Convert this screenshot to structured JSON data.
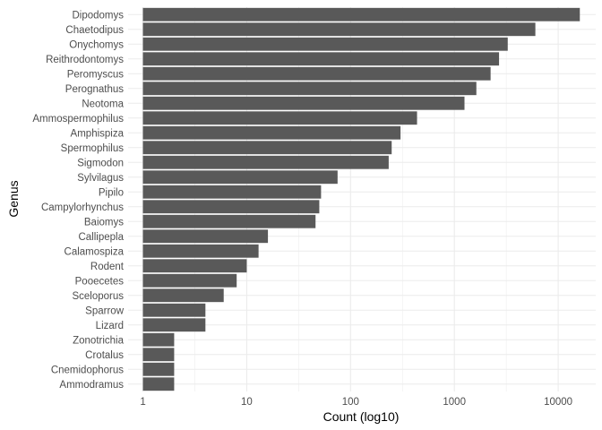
{
  "chart_data": {
    "type": "bar",
    "orientation": "horizontal",
    "xlabel": "Count (log10)",
    "ylabel": "Genus",
    "x_scale": "log10",
    "xlim": [
      0.72,
      23000
    ],
    "x_ticks": [
      1,
      10,
      100,
      1000,
      10000
    ],
    "x_tick_labels": [
      "1",
      "10",
      "100",
      "1000",
      "10000"
    ],
    "grid": true,
    "bar_color": "#595959",
    "grid_color": "#ebebeb",
    "categories": [
      "Dipodomys",
      "Chaetodipus",
      "Onychomys",
      "Reithrodontomys",
      "Peromyscus",
      "Perognathus",
      "Neotoma",
      "Ammospermophilus",
      "Amphispiza",
      "Spermophilus",
      "Sigmodon",
      "Sylvilagus",
      "Pipilo",
      "Campylorhynchus",
      "Baiomys",
      "Callipepla",
      "Calamospiza",
      "Rodent",
      "Pooecetes",
      "Sceloporus",
      "Sparrow",
      "Lizard",
      "Zonotrichia",
      "Crotalus",
      "Cnemidophorus",
      "Ammodramus"
    ],
    "values": [
      16167,
      6029,
      3267,
      2694,
      2234,
      1629,
      1252,
      437,
      303,
      249,
      233,
      75,
      52,
      50,
      46,
      16,
      13,
      10,
      8,
      6,
      4,
      4,
      2,
      2,
      2,
      2
    ]
  }
}
